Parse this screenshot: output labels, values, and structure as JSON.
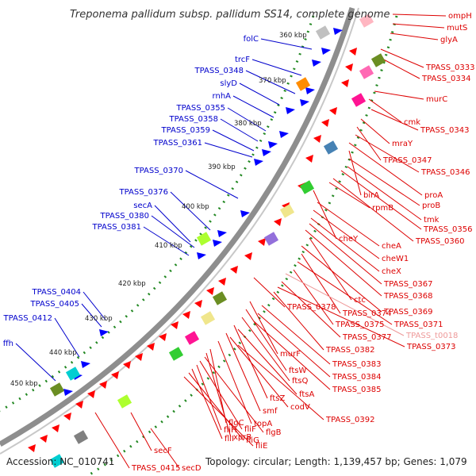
{
  "title": "Treponema pallidum subsp. pallidum SS14, complete genome",
  "accession_text": "Accession: NC_010741",
  "topology_text": "Topology: circular; Length: 1,139,457 bp; Genes: 1,079",
  "colors": {
    "forward_label": "#0000cc",
    "reverse_label": "#dd0000",
    "faded_label": "#ee9999",
    "forward_feature": "#0000ff",
    "reverse_feature": "#ff0000",
    "kbp_dots": "#228822",
    "backbone": "#909090"
  },
  "kbp_ticks": [
    "360 kbp",
    "370 kbp",
    "380 kbp",
    "390 kbp",
    "400 kbp",
    "410 kbp",
    "420 kbp",
    "430 kbp",
    "440 kbp",
    "450 kbp"
  ],
  "left_labels": [
    "folC",
    "trcF",
    "TPASS_0348",
    "slyD",
    "rnhA",
    "TPASS_0355",
    "TPASS_0358",
    "TPASS_0359",
    "TPASS_0361",
    "TPASS_0370",
    "TPASS_0376",
    "secA",
    "TPASS_0380",
    "TPASS_0381",
    "TPASS_0404",
    "TPASS_0405",
    "TPASS_0412",
    "ffh"
  ],
  "right_labels": [
    "ompH",
    "mutS",
    "glyA",
    "TPASS_0333",
    "TPASS_0334",
    "murC",
    "cmk",
    "TPASS_0343",
    "mraY",
    "TPASS_0347",
    "TPASS_0346",
    "birA",
    "proA",
    "proB",
    "tmk",
    "TPASS_0356",
    "rpmB",
    "TPASS_0360",
    "cheY",
    "cheA",
    "cheW1",
    "cheX",
    "TPASS_0367",
    "TPASS_0368",
    "ctc",
    "TPASS_0369",
    "TPASS_0378",
    "TPASS_0374",
    "TPASS_0371",
    "TPASS_0375",
    "TPASS_t0018",
    "TPASS_0377",
    "TPASS_0373",
    "TPASS_0382",
    "murF",
    "TPASS_0383",
    "ftsW",
    "TPASS_0384",
    "ftsQ",
    "TPASS_0385",
    "ftsZ",
    "ftsA",
    "smf",
    "codV",
    "topA",
    "TPASS_0392",
    "flgC",
    "xprB",
    "flgB",
    "fliF",
    "fliH",
    "fliI",
    "fliG",
    "fliE",
    "secF",
    "TPASS_0415",
    "secD"
  ]
}
